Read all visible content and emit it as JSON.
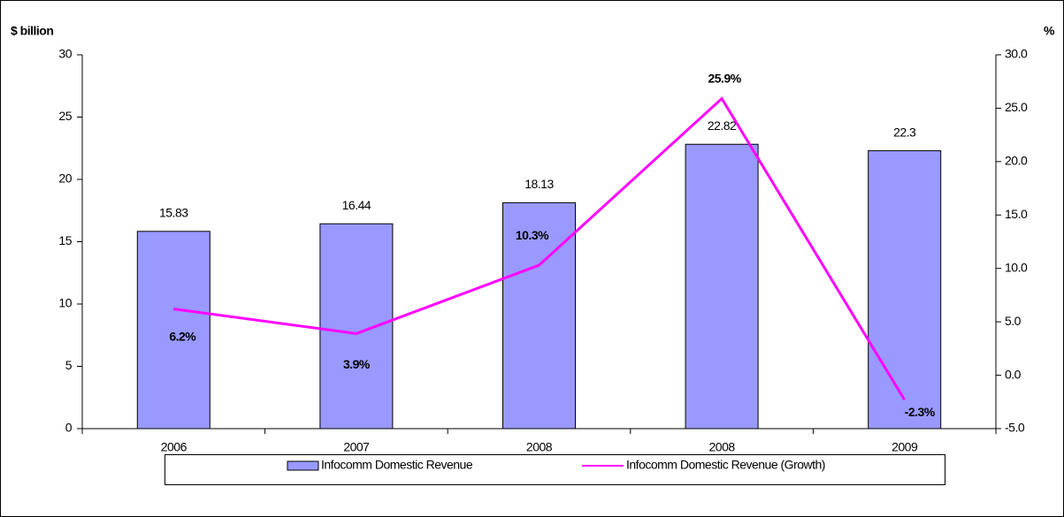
{
  "chart_data": {
    "type": "bar_line",
    "y_label": "$ billion",
    "y2_label": "%",
    "categories": [
      "2006",
      "2007",
      "2008",
      "2008",
      "2009"
    ],
    "series": [
      {
        "name": "Infocomm Domestic Revenue",
        "type": "bar",
        "color": "#9999ff",
        "values": [
          15.83,
          16.44,
          18.13,
          22.82,
          22.3
        ]
      },
      {
        "name": "Infocomm Domestic Revenue (Growth)",
        "type": "line",
        "axis": "y2",
        "color": "#ff00ff",
        "values": [
          6.2,
          3.9,
          10.3,
          25.9,
          -2.3
        ],
        "value_labels": [
          "6.2%",
          "3.9%",
          "10.3%",
          "25.9%",
          "-2.3%"
        ]
      }
    ],
    "ylim": [
      0,
      30
    ],
    "yticks": [
      0,
      5,
      10,
      15,
      20,
      25,
      30
    ],
    "y2lim": [
      -5,
      30
    ],
    "y2ticks": [
      {
        "value": -5,
        "label": "-5.0"
      },
      {
        "value": 0,
        "label": "0.0"
      },
      {
        "value": 5,
        "label": "5.0"
      },
      {
        "value": 10,
        "label": "10.0"
      },
      {
        "value": 15,
        "label": "15.0"
      },
      {
        "value": 20,
        "label": "20.0"
      },
      {
        "value": 25,
        "label": "25.0"
      },
      {
        "value": 30,
        "label": "30.0"
      }
    ],
    "legend": "bottom",
    "grid": false
  }
}
